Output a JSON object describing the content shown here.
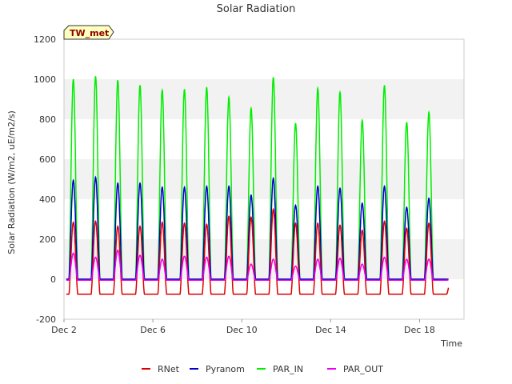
{
  "chart_data": {
    "type": "line",
    "title": "Solar Radiation",
    "xlabel": "Time",
    "ylabel": "Solar Radiation (W/m2, uE/m2/s)",
    "ylim": [
      -200,
      1200
    ],
    "yticks": [
      -200,
      0,
      200,
      400,
      600,
      800,
      1000,
      1200
    ],
    "xlim": [
      "Dec 2",
      "Dec 20"
    ],
    "xticks": [
      "Dec 2",
      "Dec 6",
      "Dec 10",
      "Dec 14",
      "Dec 18"
    ],
    "legend_position": "bottom",
    "badge": "TW_met",
    "grid_bands": true,
    "days": [
      "Dec 2",
      "Dec 3",
      "Dec 4",
      "Dec 5",
      "Dec 6",
      "Dec 7",
      "Dec 8",
      "Dec 9",
      "Dec 10",
      "Dec 11",
      "Dec 12",
      "Dec 13",
      "Dec 14",
      "Dec 15",
      "Dec 16",
      "Dec 17",
      "Dec 18",
      "Dec 19"
    ],
    "series": [
      {
        "name": "RNet",
        "color": "#dd0000",
        "night": -75,
        "daily_peak": [
          285,
          290,
          265,
          265,
          285,
          280,
          275,
          315,
          310,
          350,
          280,
          280,
          270,
          245,
          290,
          255,
          280,
          0
        ]
      },
      {
        "name": "Pyranom",
        "color": "#0000cc",
        "night": 0,
        "daily_peak": [
          495,
          510,
          480,
          480,
          460,
          460,
          465,
          465,
          420,
          505,
          370,
          465,
          455,
          380,
          465,
          360,
          405,
          0
        ]
      },
      {
        "name": "PAR_IN",
        "color": "#00ee00",
        "night": 0,
        "daily_peak": [
          1000,
          1015,
          995,
          970,
          945,
          950,
          960,
          910,
          855,
          1010,
          780,
          955,
          935,
          795,
          970,
          785,
          835,
          0
        ]
      },
      {
        "name": "PAR_OUT",
        "color": "#ee00ee",
        "night": -5,
        "daily_peak": [
          130,
          110,
          145,
          120,
          100,
          115,
          110,
          115,
          75,
          100,
          65,
          100,
          105,
          75,
          110,
          100,
          100,
          0
        ]
      }
    ]
  }
}
